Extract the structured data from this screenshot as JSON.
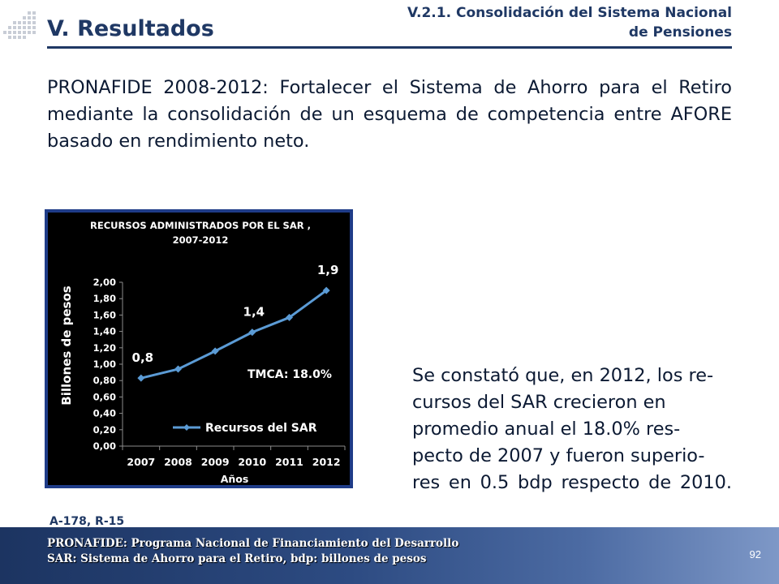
{
  "header": {
    "section_title": "V. Resultados",
    "subtitle_line1": "V.2.1. Consolidación del Sistema Nacional",
    "subtitle_line2": "de Pensiones"
  },
  "intro_text": "PRONAFIDE 2008-2012: Fortalecer el Sistema de Ahorro para el Retiro mediante la consolidación de un esquema de competencia entre AFORE basado en rendimiento neto.",
  "finding": {
    "line1": "Se constató que, en 2012, los re-",
    "line2": "cursos del SAR crecieron en",
    "line3": "promedio anual el 18.0% res-",
    "line4": "pecto de 2007 y fueron superio-",
    "line5": "res en 0.5 bdp respecto de 2010."
  },
  "reference": "A-178, R-15",
  "footer": {
    "line1": "PRONAFIDE: Programa Nacional de Financiamiento del Desarrollo",
    "line2": "SAR: Sistema de Ahorro para el Retiro, bdp: billones de pesos",
    "page_number": "92"
  },
  "colors": {
    "navy": "#1f3864",
    "chart_frame": "#1f3c88",
    "chart_bg": "#000000",
    "line": "#5b9bd5"
  },
  "chart_data": {
    "type": "line",
    "title_line1": "RECURSOS ADMINISTRADOS POR EL SAR ,",
    "title_line2": "2007-2012",
    "xlabel": "Años",
    "ylabel": "Billones de pesos",
    "categories": [
      "2007",
      "2008",
      "2009",
      "2010",
      "2011",
      "2012"
    ],
    "y_ticks": [
      "0,00",
      "0,20",
      "0,40",
      "0,60",
      "0,80",
      "1,00",
      "1,20",
      "1,40",
      "1,60",
      "1,80",
      "2,00"
    ],
    "ylim": [
      0,
      2
    ],
    "series": [
      {
        "name": "Recursos del SAR",
        "values": [
          0.83,
          0.94,
          1.16,
          1.39,
          1.57,
          1.9
        ],
        "labels": [
          "0,8",
          "",
          "",
          "1,4",
          "",
          "1,9"
        ]
      }
    ],
    "annotation": "TMCA: 18.0%",
    "legend_position": "bottom-right",
    "grid": false
  }
}
